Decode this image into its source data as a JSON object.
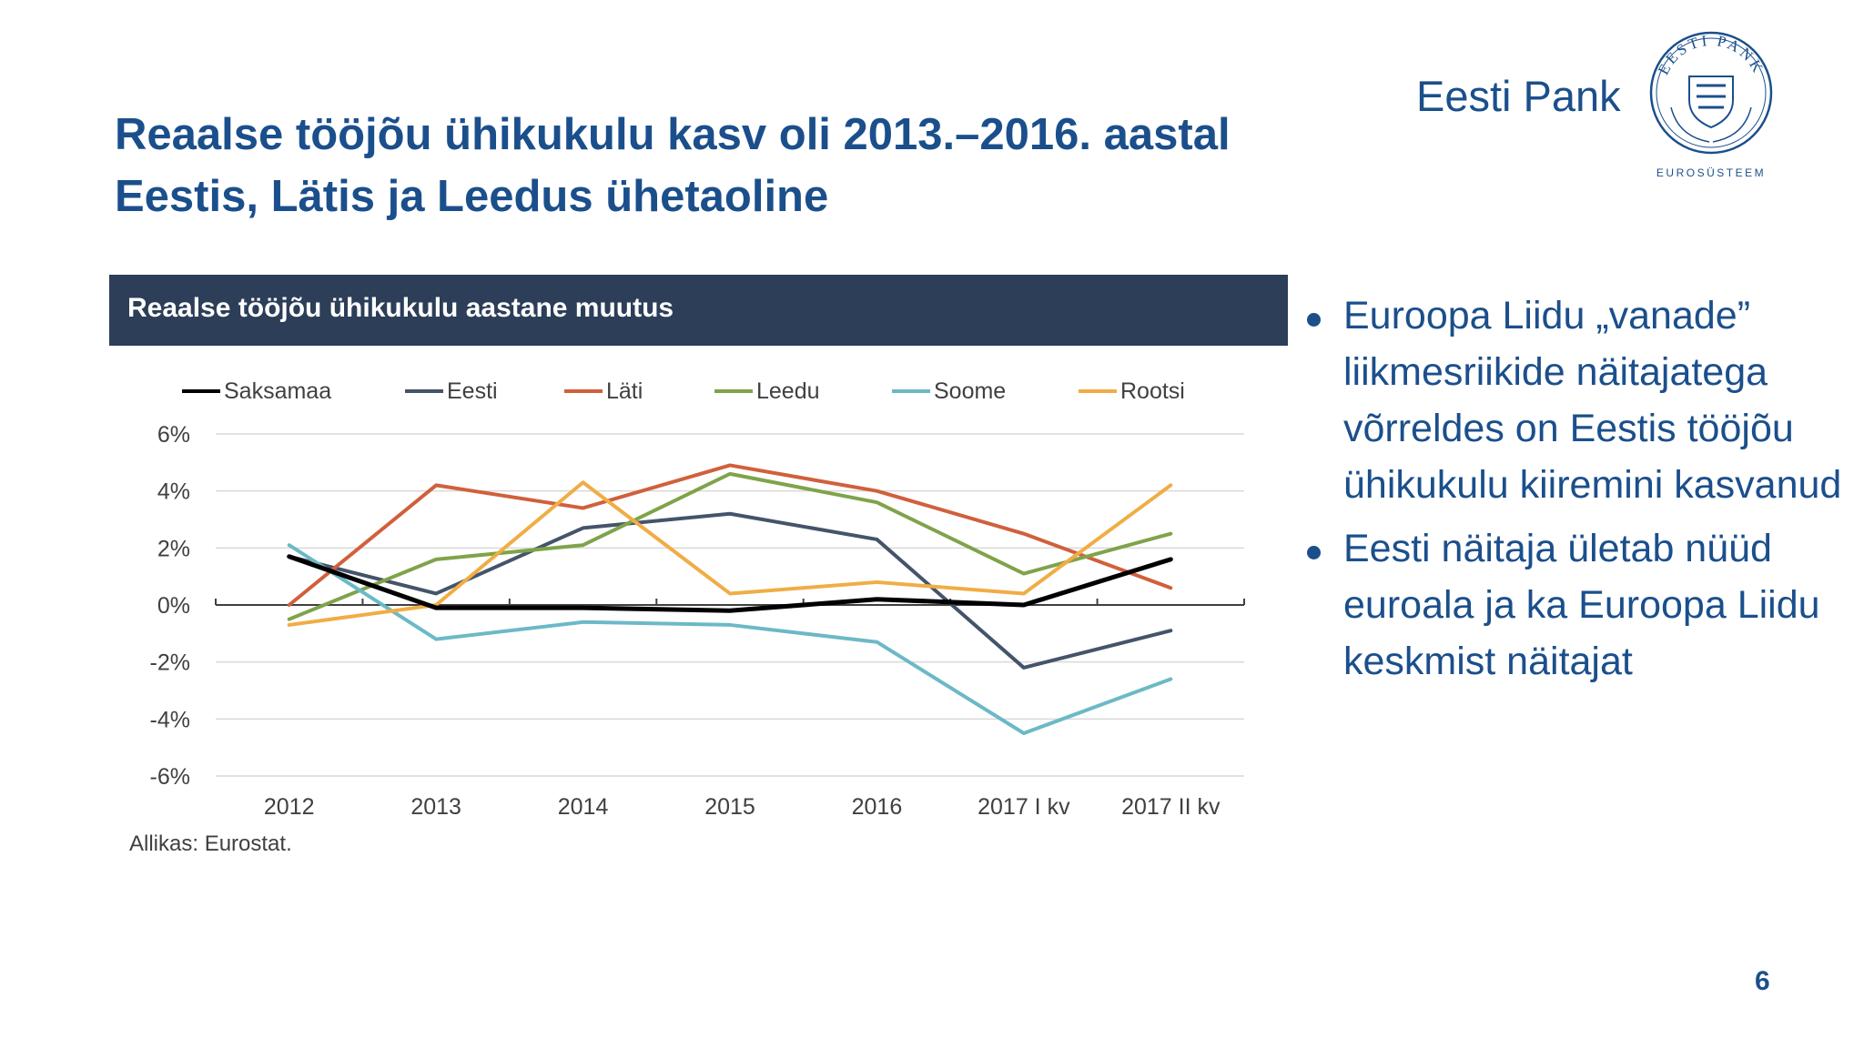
{
  "slide": {
    "title_line1": "Reaalse tööjõu ühikukulu kasv oli 2013.–2016. aastal",
    "title_line2": "Eestis, Lätis ja Leedus ühetaoline",
    "brand": "Eesti Pank",
    "logo_text_top": "EESTI PANK",
    "logo_text_bottom": "EUROSÜSTEEM",
    "page_number": "6",
    "bullets": [
      "Euroopa Liidu „vanade” liikmesriikide näitajatega võrreldes on Eestis tööjõu ühikukulu kiiremini kasvanud",
      "Eesti näitaja ületab nüüd euroala ja ka Euroopa Liidu keskmist näitajat"
    ]
  },
  "chart_data": {
    "type": "line",
    "title": "Reaalse tööjõu ühikukulu aastane muutus",
    "source": "Allikas: Eurostat.",
    "categories": [
      "2012",
      "2013",
      "2014",
      "2015",
      "2016",
      "2017 I kv",
      "2017 II kv"
    ],
    "ylim": [
      -6,
      6
    ],
    "yticks": [
      6,
      4,
      2,
      0,
      -2,
      -4,
      -6
    ],
    "ytick_labels": [
      "6%",
      "4%",
      "2%",
      "0%",
      "-2%",
      "-4%",
      "-6%"
    ],
    "grid": true,
    "legend_position": "top",
    "series": [
      {
        "name": "Saksamaa",
        "color": "#000000",
        "values": [
          1.7,
          -0.1,
          -0.1,
          -0.2,
          0.2,
          0.0,
          1.6
        ]
      },
      {
        "name": "Eesti",
        "color": "#44546a",
        "values": [
          1.7,
          0.4,
          2.7,
          3.2,
          2.3,
          -2.2,
          -0.9
        ]
      },
      {
        "name": "Läti",
        "color": "#d0603c",
        "values": [
          0.0,
          4.2,
          3.4,
          4.9,
          4.0,
          2.5,
          0.6
        ]
      },
      {
        "name": "Leedu",
        "color": "#7fa34a",
        "values": [
          -0.5,
          1.6,
          2.1,
          4.6,
          3.6,
          1.1,
          2.5
        ]
      },
      {
        "name": "Soome",
        "color": "#6cb9c6",
        "values": [
          2.1,
          -1.2,
          -0.6,
          -0.7,
          -1.3,
          -4.5,
          -2.6
        ]
      },
      {
        "name": "Rootsi",
        "color": "#f0ad45",
        "values": [
          -0.7,
          0.0,
          4.3,
          0.4,
          0.8,
          0.4,
          4.2
        ]
      }
    ]
  }
}
